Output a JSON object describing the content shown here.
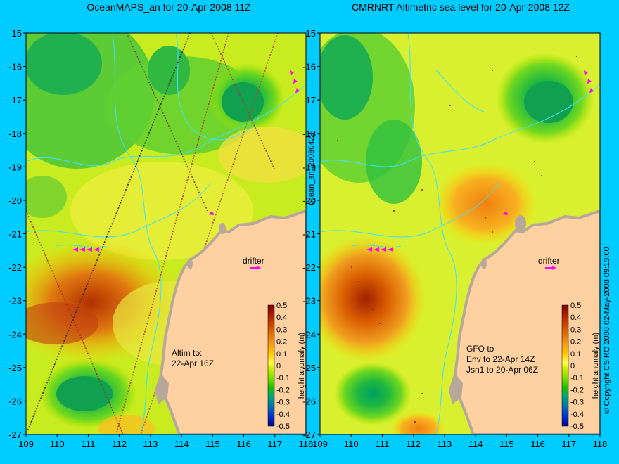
{
  "left_panel": {
    "title": "OceanMAPS_an for 20-Apr-2008 11Z",
    "annotation": [
      "Altim to:",
      "22-Apr 16Z"
    ],
    "drifter_label": "drifter",
    "side_label": "ocean_an_20080420"
  },
  "right_panel": {
    "title": "CMRNRT Altimetric sea level  for 20-Apr-2008 12Z",
    "annotation": [
      "GFO to",
      "Env to 22-Apr 14Z",
      "Jsn1 to 20-Apr 06Z"
    ],
    "drifter_label": "drifter",
    "copyright": "© Copyright CSIRO 2008   02-May-2008 09:13:00"
  },
  "axes": {
    "x_ticks": [
      "109",
      "110",
      "111",
      "112",
      "113",
      "114",
      "115",
      "116",
      "117",
      "118"
    ],
    "y_ticks": [
      "-15",
      "-16",
      "-17",
      "-18",
      "-19",
      "-20",
      "-21",
      "-22",
      "-23",
      "-24",
      "-25",
      "-26",
      "-27"
    ]
  },
  "colorbar": {
    "label": "height anomaly (m)",
    "ticks": [
      "0.5",
      "0.4",
      "0.3",
      "0.2",
      "0.1",
      "0",
      "-0.1",
      "-0.2",
      "-0.3",
      "-0.4",
      "-0.5"
    ],
    "colors": [
      "#800000",
      "#b22800",
      "#d85a00",
      "#f09018",
      "#ffc800",
      "#ffff50",
      "#d4f000",
      "#80e000",
      "#20c000",
      "#00a878",
      "#0068b0",
      "#0030d0",
      "#000090"
    ]
  },
  "colors": {
    "background": "#00ccff",
    "land": "#ffd0a0",
    "coast_shelf": "#b8a89a",
    "contour": "#40e0ff",
    "drifter_arrow": "#ff00ff"
  }
}
